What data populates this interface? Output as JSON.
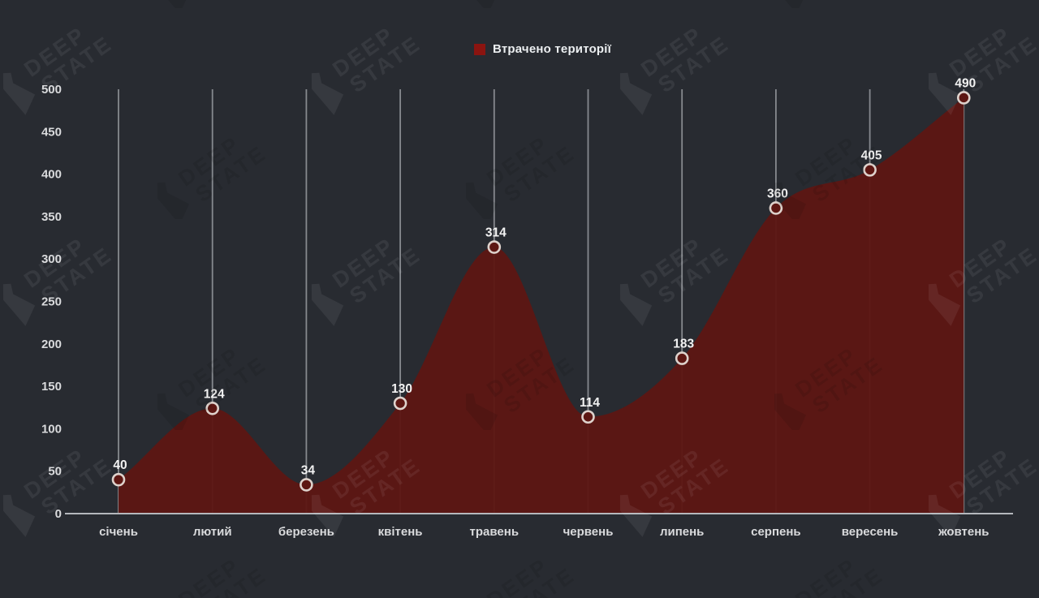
{
  "page": {
    "background": "#282b31"
  },
  "legend": {
    "label": "Втрачено території",
    "swatch_color": "#8b1410"
  },
  "watermark": {
    "line1": "DEEP",
    "line2": "STATE"
  },
  "chart_data": {
    "type": "area",
    "title": "",
    "xlabel": "",
    "ylabel": "",
    "categories": [
      "січень",
      "лютий",
      "березень",
      "квітень",
      "травень",
      "червень",
      "липень",
      "серпень",
      "вересень",
      "жовтень"
    ],
    "series": [
      {
        "name": "Втрачено території",
        "values": [
          40,
          124,
          34,
          130,
          314,
          114,
          183,
          360,
          405,
          490
        ]
      }
    ],
    "ylim": [
      0,
      500
    ],
    "ytick_step": 50,
    "grid": "vertical",
    "legend_position": "top",
    "fill_color": "#5d1713",
    "fill_opacity": 0.96,
    "marker_stroke_color": "#ded2cc",
    "value_label_color": "#f2f2f2",
    "axis_label_color": "#d9dadc",
    "gridline_color": "#9da1a6",
    "axis_line_color": "#b5b8bd"
  }
}
